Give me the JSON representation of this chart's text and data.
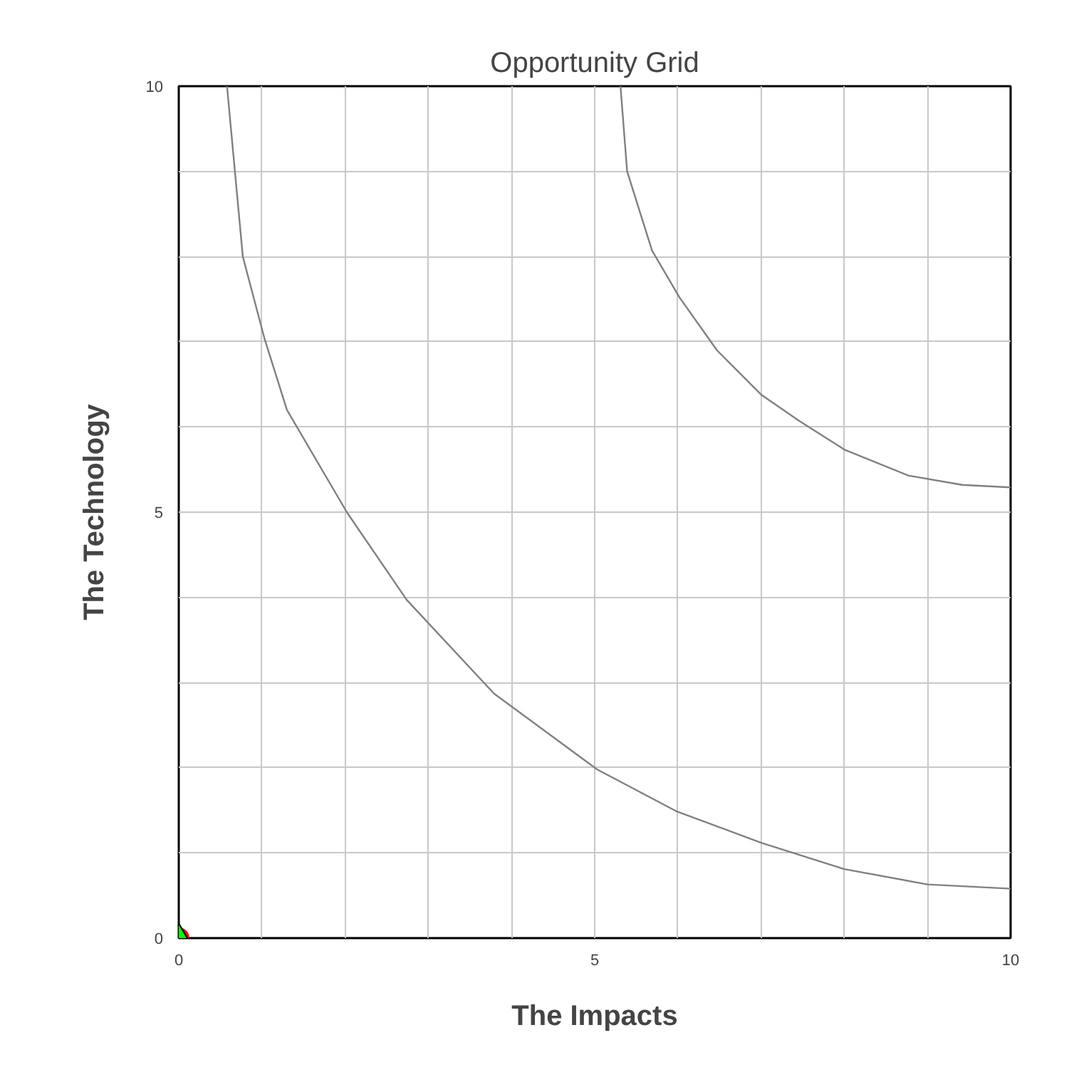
{
  "chart_data": {
    "type": "line",
    "title": "Opportunity Grid",
    "xlabel": "The Impacts",
    "ylabel": "The Technology",
    "xlim": [
      0,
      10
    ],
    "ylim": [
      0,
      10
    ],
    "xticks": [
      0,
      {
        "value": 1,
        "label": null
      },
      {
        "value": 2,
        "label": null
      },
      {
        "value": 3,
        "label": null
      },
      {
        "value": 4,
        "label": null
      },
      5,
      {
        "value": 6,
        "label": null
      },
      {
        "value": 7,
        "label": null
      },
      {
        "value": 8,
        "label": null
      },
      {
        "value": 9,
        "label": null
      },
      10
    ],
    "yticks": [
      0,
      {
        "value": 1,
        "label": null
      },
      {
        "value": 2,
        "label": null
      },
      {
        "value": 3,
        "label": null
      },
      {
        "value": 4,
        "label": null
      },
      5,
      {
        "value": 6,
        "label": null
      },
      {
        "value": 7,
        "label": null
      },
      {
        "value": 8,
        "label": null
      },
      {
        "value": 9,
        "label": null
      },
      10
    ],
    "grid": true,
    "series": [
      {
        "color": "#808080",
        "x": [
          0.58,
          0.77,
          1.03,
          1.3,
          2.02,
          2.74,
          3.79,
          5.03,
          5.98,
          7.0,
          8.0,
          9.0,
          10
        ],
        "values": [
          10,
          8,
          7.04,
          6.2,
          5.0,
          3.97,
          2.87,
          1.98,
          1.49,
          1.12,
          0.81,
          0.63,
          0.58
        ]
      },
      {
        "color": "#808080",
        "x": [
          5.31,
          5.39,
          5.69,
          6.02,
          6.47,
          7.0,
          7.46,
          8.01,
          8.77,
          9.42,
          10
        ],
        "values": [
          10,
          9.0,
          8.07,
          7.52,
          6.9,
          6.38,
          6.07,
          5.73,
          5.43,
          5.32,
          5.29
        ]
      },
      {
        "type": "scatter",
        "marker": "circle",
        "color": "#ff0000",
        "x": [
          0
        ],
        "values": [
          0
        ]
      },
      {
        "type": "scatter",
        "marker": "triangle",
        "color": "#00ff00",
        "x": [
          0
        ],
        "values": [
          0
        ]
      }
    ]
  }
}
